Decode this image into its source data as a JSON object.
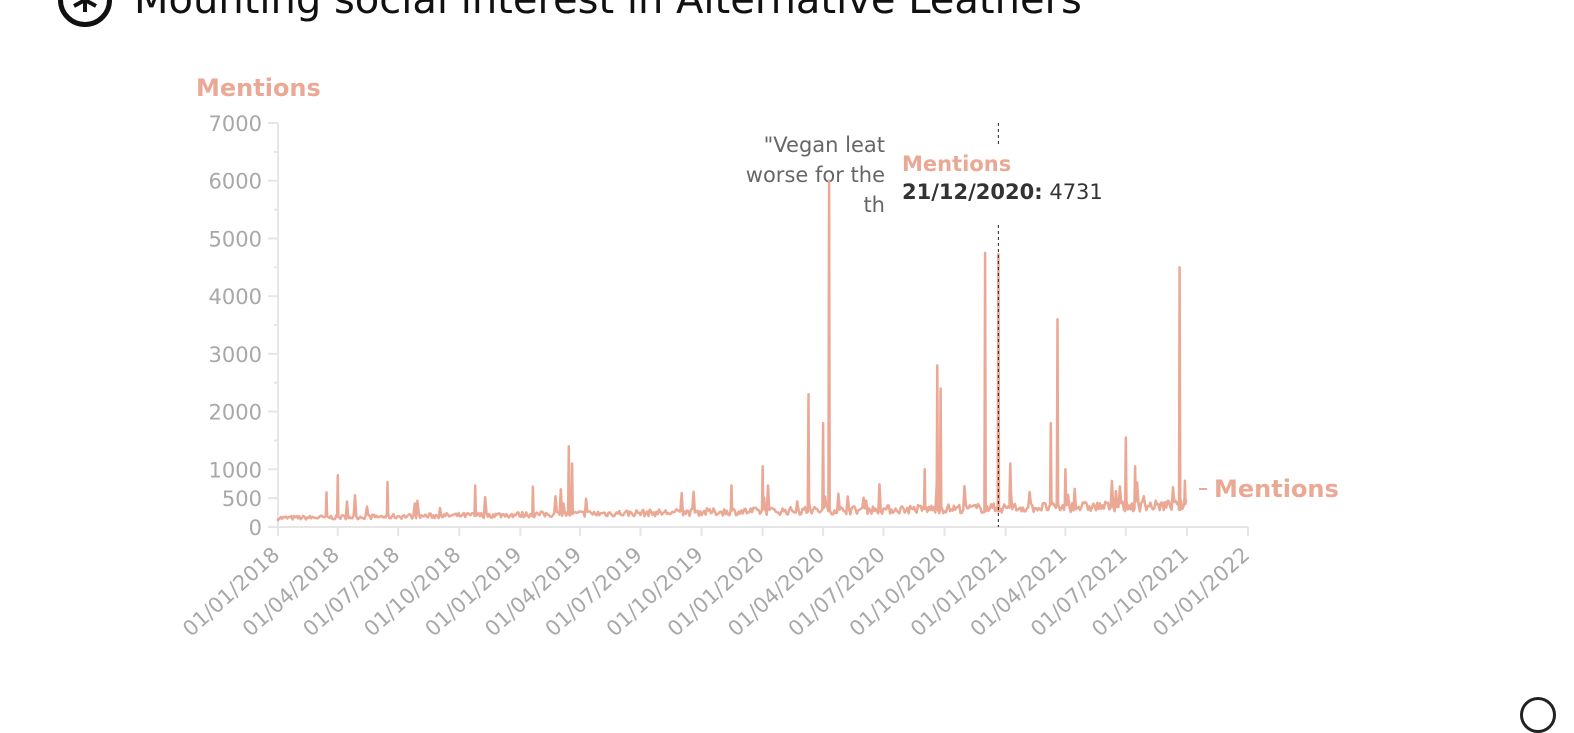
{
  "header": {
    "title": "Mounting social interest in Alternative Leathers",
    "logo_icon": "asterisk-circle-logo"
  },
  "chart_data": {
    "type": "line",
    "title": "Mounting social interest in Alternative Leathers",
    "ylabel": "Mentions",
    "xlabel": "",
    "ylim": [
      0,
      7000
    ],
    "xlim": [
      "01/01/2018",
      "01/01/2022"
    ],
    "y_ticks": [
      "0",
      "500",
      "1000",
      "2000",
      "3000",
      "4000",
      "5000",
      "6000",
      "7000"
    ],
    "x_ticks": [
      "01/01/2018",
      "01/04/2018",
      "01/07/2018",
      "01/10/2018",
      "01/01/2019",
      "01/04/2019",
      "01/07/2019",
      "01/10/2019",
      "01/01/2020",
      "01/04/2020",
      "01/07/2020",
      "01/10/2020",
      "01/01/2021",
      "01/04/2021",
      "01/07/2021",
      "01/10/2021",
      "01/01/2022"
    ],
    "grid": false,
    "legend": "right",
    "color": "#eba895",
    "series": [
      {
        "name": "Mentions",
        "peaks": [
          {
            "date": "15/03/2018",
            "value": 600
          },
          {
            "date": "01/04/2018",
            "value": 900
          },
          {
            "date": "15/06/2018",
            "value": 780
          },
          {
            "date": "25/10/2018",
            "value": 720
          },
          {
            "date": "20/01/2019",
            "value": 700
          },
          {
            "date": "15/03/2019",
            "value": 1400
          },
          {
            "date": "20/03/2019",
            "value": 1100
          },
          {
            "date": "15/11/2019",
            "value": 720
          },
          {
            "date": "01/01/2020",
            "value": 1050
          },
          {
            "date": "10/03/2020",
            "value": 2300
          },
          {
            "date": "01/04/2020",
            "value": 1800
          },
          {
            "date": "10/04/2020",
            "value": 6000
          },
          {
            "date": "01/09/2020",
            "value": 1000
          },
          {
            "date": "20/09/2020",
            "value": 2800
          },
          {
            "date": "25/09/2020",
            "value": 2400
          },
          {
            "date": "01/12/2020",
            "value": 4750
          },
          {
            "date": "08/01/2021",
            "value": 1100
          },
          {
            "date": "21/12/2020",
            "value": 4731
          },
          {
            "date": "10/03/2021",
            "value": 1800
          },
          {
            "date": "20/03/2021",
            "value": 3600
          },
          {
            "date": "01/04/2021",
            "value": 1000
          },
          {
            "date": "01/07/2021",
            "value": 1550
          },
          {
            "date": "15/07/2021",
            "value": 1050
          },
          {
            "date": "20/09/2021",
            "value": 4500
          },
          {
            "date": "28/09/2021",
            "value": 800
          },
          {
            "date": "01/10/2021",
            "value": 700
          }
        ]
      }
    ],
    "annotation": {
      "line1": "\"Vegan leat",
      "line2": "worse for the",
      "line3": "th"
    },
    "tooltip": {
      "series": "Mentions",
      "date": "21/12/2020:",
      "value": "4731"
    }
  }
}
